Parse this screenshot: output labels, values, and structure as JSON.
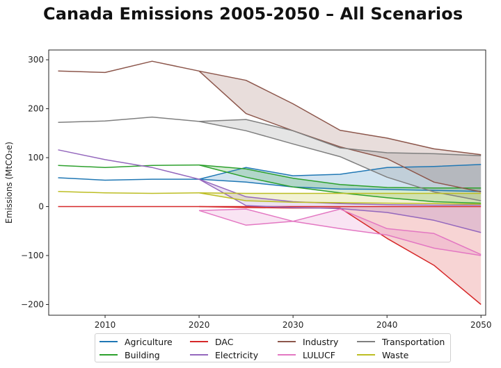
{
  "chart_data": {
    "type": "line",
    "title": "Canada Emissions 2005-2050 – All Scenarios",
    "xlabel": "",
    "ylabel": "Emissions (MtCO₂e)",
    "xlim": [
      2004,
      2050.5
    ],
    "ylim": [
      -222,
      320
    ],
    "xticks": [
      2010,
      2020,
      2030,
      2040,
      2050
    ],
    "yticks": [
      -200,
      -100,
      0,
      100,
      200,
      300
    ],
    "grid": false,
    "legend_position": "bottom",
    "series": [
      {
        "name": "Agriculture",
        "color": "#1f77b4",
        "history": {
          "x": [
            2005,
            2010,
            2015,
            2020
          ],
          "y": [
            59,
            54,
            56,
            56
          ]
        },
        "upper": {
          "x": [
            2020,
            2025,
            2030,
            2035,
            2040,
            2045,
            2050
          ],
          "y": [
            56,
            80,
            63,
            66,
            80,
            82,
            86
          ]
        },
        "lower": {
          "x": [
            2020,
            2025,
            2030,
            2035,
            2040,
            2045,
            2050
          ],
          "y": [
            56,
            50,
            40,
            36,
            35,
            33,
            31
          ]
        }
      },
      {
        "name": "Building",
        "color": "#2ca02c",
        "history": {
          "x": [
            2005,
            2010,
            2015,
            2020
          ],
          "y": [
            84,
            80,
            84,
            85
          ]
        },
        "upper": {
          "x": [
            2020,
            2025,
            2030,
            2035,
            2040,
            2045,
            2050
          ],
          "y": [
            85,
            77,
            58,
            45,
            39,
            38,
            38
          ]
        },
        "lower": {
          "x": [
            2020,
            2025,
            2030,
            2035,
            2040,
            2045,
            2050
          ],
          "y": [
            85,
            60,
            40,
            28,
            18,
            10,
            7
          ]
        }
      },
      {
        "name": "DAC",
        "color": "#d62728",
        "history": {
          "x": [
            2005,
            2010,
            2015,
            2020
          ],
          "y": [
            0,
            0,
            0,
            0
          ]
        },
        "upper": {
          "x": [
            2020,
            2025,
            2030,
            2035,
            2040,
            2045,
            2050
          ],
          "y": [
            0,
            0,
            0,
            0,
            0,
            0,
            0
          ]
        },
        "lower": {
          "x": [
            2020,
            2025,
            2030,
            2035,
            2040,
            2045,
            2050
          ],
          "y": [
            0,
            -2,
            -3,
            -3,
            -65,
            -120,
            -200
          ]
        }
      },
      {
        "name": "Electricity",
        "color": "#9467bd",
        "history": {
          "x": [
            2005,
            2010,
            2015,
            2020
          ],
          "y": [
            116,
            96,
            80,
            56
          ]
        },
        "upper": {
          "x": [
            2020,
            2025,
            2030,
            2035,
            2040,
            2045,
            2050
          ],
          "y": [
            56,
            20,
            10,
            6,
            4,
            3,
            3
          ]
        },
        "lower": {
          "x": [
            2020,
            2025,
            2030,
            2035,
            2040,
            2045,
            2050
          ],
          "y": [
            56,
            2,
            -2,
            -4,
            -12,
            -28,
            -53
          ]
        }
      },
      {
        "name": "Industry",
        "color": "#8c564b",
        "history": {
          "x": [
            2005,
            2010,
            2015,
            2020
          ],
          "y": [
            277,
            274,
            297,
            277
          ]
        },
        "upper": {
          "x": [
            2020,
            2025,
            2030,
            2035,
            2040,
            2045,
            2050
          ],
          "y": [
            277,
            258,
            210,
            156,
            140,
            118,
            106
          ]
        },
        "lower": {
          "x": [
            2020,
            2025,
            2030,
            2035,
            2040,
            2045,
            2050
          ],
          "y": [
            277,
            190,
            155,
            122,
            98,
            50,
            30
          ]
        }
      },
      {
        "name": "LULUCF",
        "color": "#e377c2",
        "history": {
          "x": [],
          "y": []
        },
        "upper": {
          "x": [
            2020,
            2025,
            2030,
            2035,
            2040,
            2045,
            2050
          ],
          "y": [
            -8,
            -5,
            -30,
            -5,
            -45,
            -55,
            -98
          ]
        },
        "lower": {
          "x": [
            2020,
            2025,
            2030,
            2035,
            2040,
            2045,
            2050
          ],
          "y": [
            -8,
            -38,
            -30,
            -45,
            -58,
            -85,
            -100
          ]
        }
      },
      {
        "name": "Transportation",
        "color": "#7f7f7f",
        "history": {
          "x": [
            2005,
            2010,
            2015,
            2020
          ],
          "y": [
            172,
            175,
            183,
            174
          ]
        },
        "upper": {
          "x": [
            2020,
            2025,
            2030,
            2035,
            2040,
            2045,
            2050
          ],
          "y": [
            174,
            178,
            155,
            120,
            110,
            108,
            104
          ]
        },
        "lower": {
          "x": [
            2020,
            2025,
            2030,
            2035,
            2040,
            2045,
            2050
          ],
          "y": [
            174,
            155,
            128,
            102,
            60,
            30,
            12
          ]
        }
      },
      {
        "name": "Waste",
        "color": "#bcbd22",
        "history": {
          "x": [
            2005,
            2010,
            2015,
            2020
          ],
          "y": [
            31,
            28,
            27,
            28
          ]
        },
        "upper": {
          "x": [
            2020,
            2025,
            2030,
            2035,
            2040,
            2045,
            2050
          ],
          "y": [
            28,
            27,
            27,
            27,
            27,
            27,
            27
          ]
        },
        "lower": {
          "x": [
            2020,
            2025,
            2030,
            2035,
            2040,
            2045,
            2050
          ],
          "y": [
            28,
            12,
            9,
            8,
            7,
            6,
            5
          ]
        }
      }
    ],
    "legend_order": [
      "Agriculture",
      "Building",
      "DAC",
      "Electricity",
      "Industry",
      "LULUCF",
      "Transportation",
      "Waste"
    ]
  }
}
